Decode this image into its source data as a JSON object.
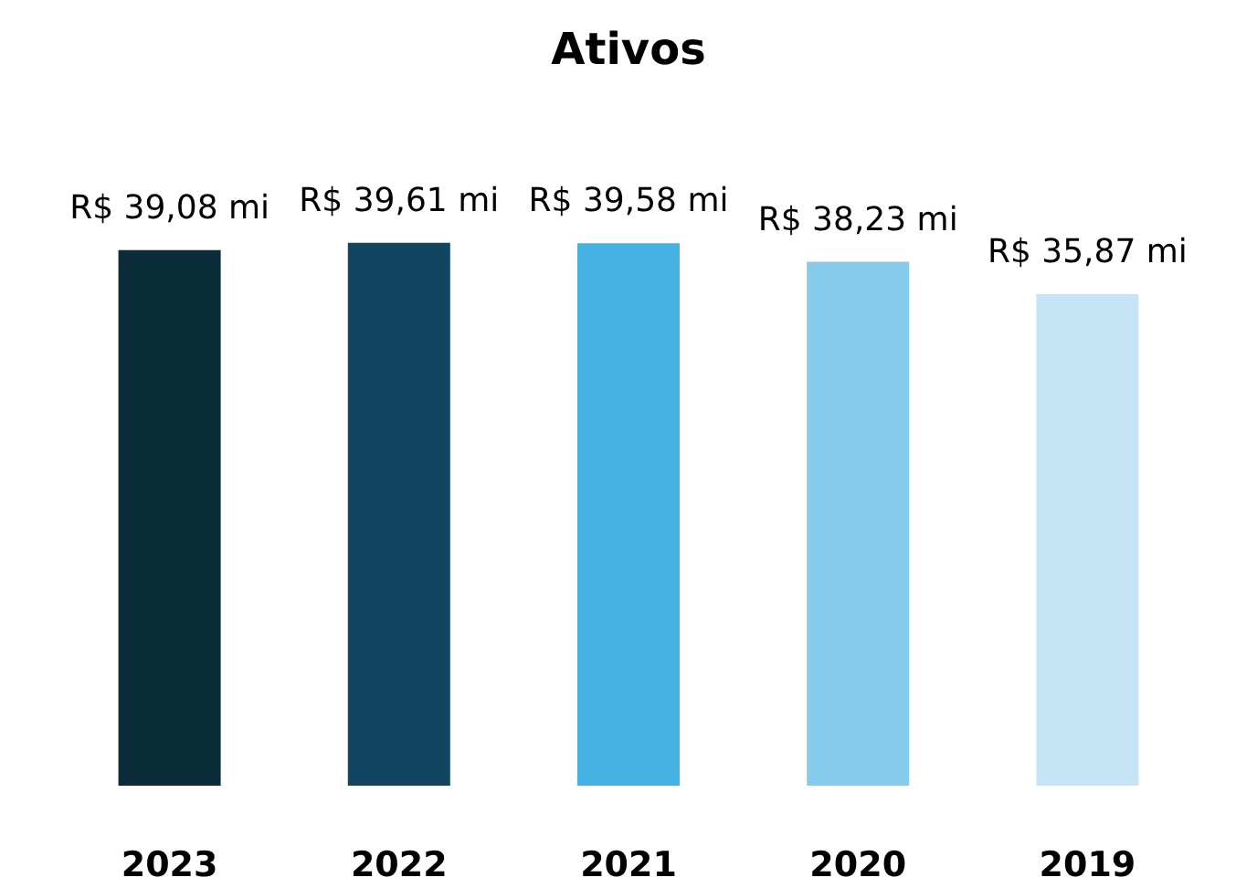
{
  "chart_data": {
    "type": "bar",
    "title": "Ativos",
    "categories": [
      "2023",
      "2022",
      "2021",
      "2020",
      "2019"
    ],
    "values": [
      39.08,
      39.61,
      39.58,
      38.23,
      35.87
    ],
    "colors": [
      "#0b2d3a",
      "#124660",
      "#45b2e3",
      "#84cbec",
      "#c5e5f6"
    ],
    "value_labels": [
      "R$ 39,08 mi",
      "R$ 39,61 mi",
      "R$ 39,58 mi",
      "R$ 38,23 mi",
      "R$ 35,87 mi"
    ]
  }
}
